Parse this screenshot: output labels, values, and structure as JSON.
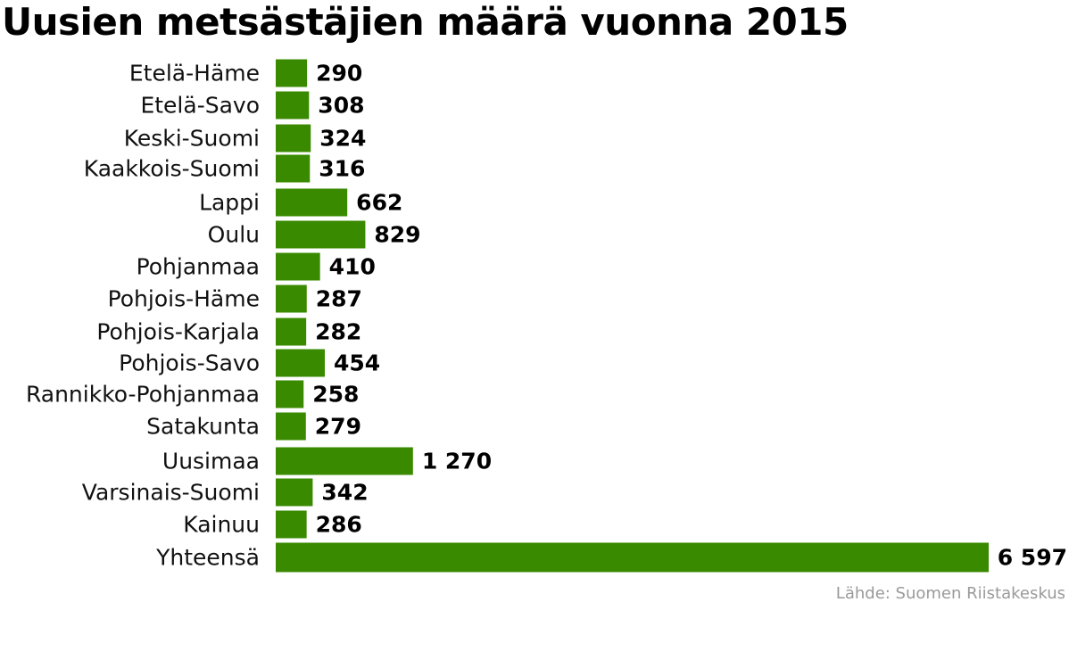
{
  "chart_data": {
    "type": "bar",
    "orientation": "horizontal",
    "title": "Uusien metsästäjien määrä vuonna 2015",
    "categories": [
      "Etelä-Häme",
      "Etelä-Savo",
      "Keski-Suomi",
      "Kaakkois-Suomi",
      "Lappi",
      "Oulu",
      "Pohjanmaa",
      "Pohjois-Häme",
      "Pohjois-Karjala",
      "Pohjois-Savo",
      "Rannikko-Pohjanmaa",
      "Satakunta",
      "Uusimaa",
      "Varsinais-Suomi",
      "Kainuu",
      "Yhteensä"
    ],
    "values": [
      290,
      308,
      324,
      316,
      662,
      829,
      410,
      287,
      282,
      454,
      258,
      279,
      1270,
      342,
      286,
      6597
    ],
    "value_labels": [
      "290",
      "308",
      "324",
      "316",
      "662",
      "829",
      "410",
      "287",
      "282",
      "454",
      "258",
      "279",
      "1 270",
      "342",
      "286",
      "6 597"
    ],
    "xlim": [
      0,
      6597
    ],
    "grid": false,
    "bar_color": "#3a8a00",
    "source": "Lähde: Suomen Riistakeskus"
  }
}
